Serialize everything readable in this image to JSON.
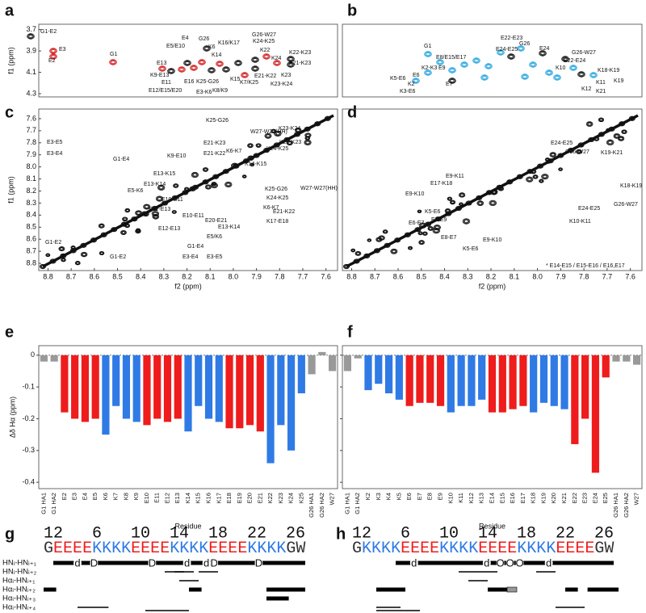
{
  "panel_labels": [
    "a",
    "b",
    "c",
    "d",
    "e",
    "f",
    "g",
    "h"
  ],
  "peak_colors": {
    "a": "#d31f1f",
    "b": "#29a6df",
    "base": "#111111"
  },
  "spectra": [
    {
      "ylabel": "f1 (ppm)",
      "ylim": [
        3.65,
        4.33
      ],
      "xlim": [
        8.84,
        7.55
      ],
      "yticks": [
        3.7,
        3.9,
        4.1,
        4.3
      ],
      "labels": [
        "G1-E2",
        "E3",
        "E2",
        "G1",
        "E4",
        "E5/E10",
        "G26",
        "K6",
        "K14",
        "E13",
        "K9-E13",
        "E11",
        "E12/E15/E20",
        "E16",
        "K25-G26",
        "E3-K6",
        "K8/K9",
        "K16/K17",
        "K15",
        "K7/K25",
        "G26-W27",
        "K24-K25",
        "K22",
        "K24",
        "K22-K23",
        "E21-K23",
        "E21-K22",
        "K23",
        "K23-K24"
      ]
    },
    {
      "ylim": [
        3.65,
        4.33
      ],
      "xlim": [
        8.84,
        7.55
      ],
      "labels": [
        "G1",
        "E22-E23",
        "G26",
        "E24",
        "G26-W27",
        "E8/E15/E17",
        "K2-K3",
        "E9",
        "E24-E25",
        "E22-E24",
        "K5-E6",
        "E6",
        "K2",
        "K3-E6",
        "E7",
        "K10",
        "K18-K19",
        "K19",
        "K11",
        "K12",
        "K21"
      ]
    },
    {
      "ylabel": "f1 (ppm)",
      "xlabel": "f2 (ppm)",
      "ylim": [
        7.52,
        8.86
      ],
      "xlim": [
        8.84,
        7.55
      ],
      "yticks": [
        7.6,
        7.7,
        7.8,
        7.9,
        {
          "value": 8,
          "label": "8.0"
        },
        8.1,
        8.2,
        8.3,
        8.4,
        8.5,
        8.6,
        8.7,
        8.8
      ],
      "xticks": [
        8.8,
        8.7,
        8.6,
        8.5,
        8.4,
        8.3,
        8.2,
        8.1,
        {
          "value": 8,
          "label": "8.0"
        },
        7.9,
        7.8,
        7.7,
        7.6
      ],
      "labels": [
        "E3-E5",
        "E3-E4",
        "G1-E4",
        "G1-E2",
        "G1-E2",
        "E3-E4",
        "E3-E5",
        "K25-G26",
        "K23-K24",
        "W27-W27(HH)",
        "E21-K23",
        "K22-K23",
        "E21-K22",
        "K6-K7",
        "K9-E10",
        "K24-K25",
        "E13-K15",
        "K14-K15",
        "E13-K14",
        "E5-K6",
        "K24-K25",
        "K25-G26",
        "K6-K7",
        "E10-E11",
        "E12-E13",
        "E21-K22",
        "E10-E11",
        "E20-E21",
        "K17-E18",
        "E12-E13",
        "E13-K14",
        "E5/K6",
        "G1-E4",
        "W27-W27(HH)"
      ]
    },
    {
      "xlabel": "f2 (ppm)",
      "ylim": [
        7.52,
        8.86
      ],
      "xlim": [
        8.84,
        7.55
      ],
      "xticks": [
        8.8,
        8.7,
        8.6,
        8.5,
        8.4,
        8.3,
        8.2,
        8.1,
        {
          "value": 8,
          "label": "8.0"
        },
        7.9,
        7.8,
        7.7,
        7.6
      ],
      "labels": [
        "E24-E25",
        "G26-W27",
        "K19-K21",
        "E9-K11",
        "E9-K10",
        "E17-K18",
        "K5-E6",
        "E6-E7",
        "E8-E9",
        "E8-E7",
        "K5-E6",
        "K18-K19",
        "G26-W27",
        "E24-E25",
        "K10-K11",
        "E9-K10",
        "* E14-E15 / E15-E16 / E16,E17"
      ]
    }
  ],
  "chart_data": [
    {
      "type": "bar",
      "ylabel": "Δδ Hα (ppm)",
      "xlabel": "Residue",
      "categories": [
        "G1 HA1",
        "G1 HA2",
        "E2",
        "E3",
        "E4",
        "E5",
        "K6",
        "K7",
        "K8",
        "K9",
        "E10",
        "E11",
        "E12",
        "E13",
        "K14",
        "K15",
        "K16",
        "K17",
        "E18",
        "E19",
        "E20",
        "E21",
        "K22",
        "K23",
        "K24",
        "K25",
        "G26 HA1",
        "G26 HA2",
        "W27"
      ],
      "values": [
        -0.02,
        -0.02,
        -0.18,
        -0.2,
        -0.21,
        -0.2,
        -0.25,
        -0.16,
        -0.2,
        -0.21,
        -0.22,
        -0.2,
        -0.21,
        -0.2,
        -0.24,
        -0.16,
        -0.2,
        -0.21,
        -0.23,
        -0.23,
        -0.22,
        -0.24,
        -0.34,
        -0.22,
        -0.3,
        -0.12,
        -0.06,
        0.01,
        -0.05
      ],
      "colors": [
        "#999999",
        "#999999",
        "#ee1c1c",
        "#ee1c1c",
        "#ee1c1c",
        "#ee1c1c",
        "#2f7ae5",
        "#2f7ae5",
        "#2f7ae5",
        "#2f7ae5",
        "#ee1c1c",
        "#ee1c1c",
        "#ee1c1c",
        "#ee1c1c",
        "#2f7ae5",
        "#2f7ae5",
        "#2f7ae5",
        "#2f7ae5",
        "#ee1c1c",
        "#ee1c1c",
        "#ee1c1c",
        "#ee1c1c",
        "#2f7ae5",
        "#2f7ae5",
        "#2f7ae5",
        "#2f7ae5",
        "#999999",
        "#999999",
        "#999999"
      ],
      "ylim": [
        -0.42,
        0.03
      ],
      "yticks": [
        0,
        -0.1,
        -0.2,
        -0.3,
        -0.4
      ]
    },
    {
      "type": "bar",
      "xlabel": "Residue",
      "tick_labels": false,
      "categories": [
        "G1 HA1",
        "G1 HA2",
        "K2",
        "K3",
        "K4",
        "K5",
        "E6",
        "E7",
        "E8",
        "E9",
        "K10",
        "K11",
        "K12",
        "K13",
        "E14",
        "E15",
        "E16",
        "E17",
        "K18",
        "K19",
        "K20",
        "K21",
        "E22",
        "E23",
        "E24",
        "E25",
        "G26 HA1",
        "G26 HA2",
        "W27"
      ],
      "values": [
        -0.05,
        -0.01,
        -0.11,
        -0.09,
        -0.12,
        -0.14,
        -0.16,
        -0.15,
        -0.15,
        -0.16,
        -0.18,
        -0.16,
        -0.16,
        -0.14,
        -0.18,
        -0.18,
        -0.17,
        -0.16,
        -0.18,
        -0.15,
        -0.16,
        -0.17,
        -0.28,
        -0.2,
        -0.37,
        -0.07,
        -0.02,
        -0.02,
        -0.03
      ],
      "colors": [
        "#999999",
        "#999999",
        "#2f7ae5",
        "#2f7ae5",
        "#2f7ae5",
        "#2f7ae5",
        "#ee1c1c",
        "#ee1c1c",
        "#ee1c1c",
        "#ee1c1c",
        "#2f7ae5",
        "#2f7ae5",
        "#2f7ae5",
        "#2f7ae5",
        "#ee1c1c",
        "#ee1c1c",
        "#ee1c1c",
        "#ee1c1c",
        "#2f7ae5",
        "#2f7ae5",
        "#2f7ae5",
        "#2f7ae5",
        "#ee1c1c",
        "#ee1c1c",
        "#ee1c1c",
        "#ee1c1c",
        "#999999",
        "#999999",
        "#999999"
      ],
      "ylim": [
        -0.42,
        0.03
      ],
      "yticks": [
        0,
        -0.1,
        -0.2,
        -0.3,
        -0.4
      ]
    }
  ],
  "letter_colors": {
    "G": "#333333",
    "W": "#333333",
    "E": "#ee1c1c",
    "K": "#2f7ae5"
  },
  "noe_rows": [
    "HNᵢ-HNᵢ₊₁",
    "HNᵢ-HNᵢ₊₂",
    "Hαᵢ-HNᵢ₊₁",
    "Hαᵢ-HNᵢ₊₂",
    "Hαᵢ-HNᵢ₊₃",
    "Hαᵢ-HNᵢ₊₄"
  ],
  "sequences": [
    {
      "numbers": [
        1,
        2,
        6,
        10,
        14,
        18,
        22,
        26
      ],
      "sequence": "GEEEEKKKKEEEEKKKKEEEEKKKKGW",
      "symbols": [
        "d",
        "D",
        "D",
        "d",
        "d",
        "D",
        "D"
      ]
    },
    {
      "numbers": [
        1,
        2,
        6,
        10,
        14,
        18,
        22,
        26
      ],
      "sequence": "GKKKKEEEEKKKKEEEEKKKKEEEEGW",
      "symbols": [
        "d",
        "d",
        "O",
        "O",
        "O",
        "d"
      ]
    }
  ]
}
